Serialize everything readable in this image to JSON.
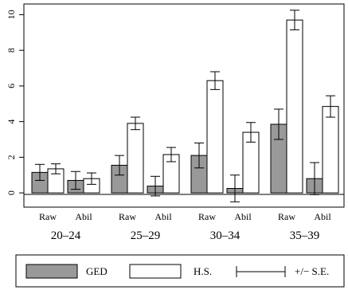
{
  "chart_data": {
    "type": "bar",
    "groups": [
      "20–24",
      "25–29",
      "30–34",
      "35–39"
    ],
    "subcategories": [
      "Raw",
      "Abil"
    ],
    "series": [
      {
        "name": "GED",
        "color": "#999999",
        "values": [
          1.15,
          0.7,
          1.55,
          0.38,
          2.1,
          0.25,
          3.85,
          0.8
        ],
        "errors": [
          0.45,
          0.5,
          0.55,
          0.55,
          0.7,
          0.75,
          0.85,
          0.9
        ]
      },
      {
        "name": "H.S.",
        "color": "#ffffff",
        "values": [
          1.35,
          0.8,
          3.9,
          2.15,
          6.3,
          3.4,
          9.7,
          4.85
        ],
        "errors": [
          0.28,
          0.32,
          0.35,
          0.4,
          0.5,
          0.55,
          0.55,
          0.6
        ]
      }
    ],
    "ylim": [
      -0.8,
      10.6
    ],
    "yticks": [
      "0",
      "2",
      "4",
      "6",
      "8",
      "10"
    ],
    "xlabel": "",
    "ylabel": "",
    "title": "",
    "legend": {
      "position": "bottom",
      "error_label": "+/− S.E."
    }
  }
}
